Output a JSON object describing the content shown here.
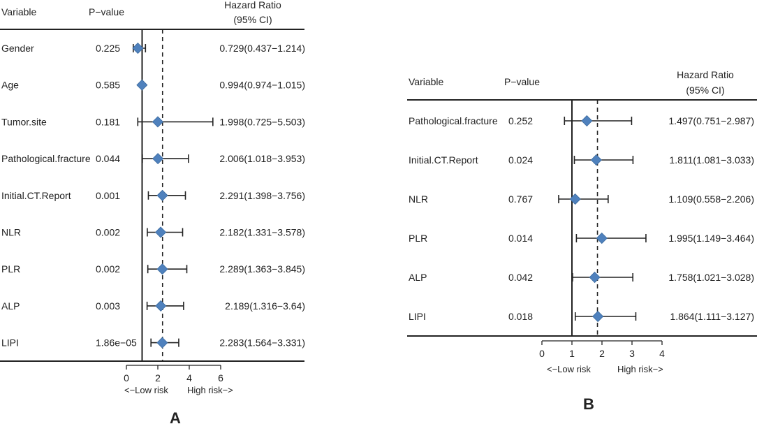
{
  "chart_data": [
    {
      "type": "forest",
      "panel_label": "A",
      "columns": {
        "variable": "Variable",
        "pvalue": "P−value",
        "hr_line1": "Hazard Ratio",
        "hr_line2": "(95% CI)"
      },
      "xaxis": {
        "ticks": [
          0,
          2,
          4,
          6
        ],
        "tick_labels": [
          "0",
          "2",
          "4",
          "6"
        ],
        "reference_line": 1,
        "left_label": "<−Low risk",
        "right_label": "High risk−>"
      },
      "xlim": [
        0,
        6
      ],
      "dashed_line_value": 2.3,
      "rows": [
        {
          "variable": "Gender",
          "p_value": "0.225",
          "hr": 0.729,
          "lower": 0.437,
          "upper": 1.214,
          "hr_text": "0.729(0.437−1.214)"
        },
        {
          "variable": "Age",
          "p_value": "0.585",
          "hr": 0.994,
          "lower": 0.974,
          "upper": 1.015,
          "hr_text": "0.994(0.974−1.015)"
        },
        {
          "variable": "Tumor.site",
          "p_value": "0.181",
          "hr": 1.998,
          "lower": 0.725,
          "upper": 5.503,
          "hr_text": "1.998(0.725−5.503)"
        },
        {
          "variable": "Pathological.fracture",
          "p_value": "0.044",
          "hr": 2.006,
          "lower": 1.018,
          "upper": 3.953,
          "hr_text": "2.006(1.018−3.953)"
        },
        {
          "variable": "Initial.CT.Report",
          "p_value": "0.001",
          "hr": 2.291,
          "lower": 1.398,
          "upper": 3.756,
          "hr_text": "2.291(1.398−3.756)"
        },
        {
          "variable": "NLR",
          "p_value": "0.002",
          "hr": 2.182,
          "lower": 1.331,
          "upper": 3.578,
          "hr_text": "2.182(1.331−3.578)"
        },
        {
          "variable": "PLR",
          "p_value": "0.002",
          "hr": 2.289,
          "lower": 1.363,
          "upper": 3.845,
          "hr_text": "2.289(1.363−3.845)"
        },
        {
          "variable": "ALP",
          "p_value": "0.003",
          "hr": 2.189,
          "lower": 1.316,
          "upper": 3.64,
          "hr_text": "2.189(1.316−3.64)"
        },
        {
          "variable": "LIPI",
          "p_value": "1.86e−05",
          "hr": 2.283,
          "lower": 1.564,
          "upper": 3.331,
          "hr_text": "2.283(1.564−3.331)"
        }
      ]
    },
    {
      "type": "forest",
      "panel_label": "B",
      "columns": {
        "variable": "Variable",
        "pvalue": "P−value",
        "hr_line1": "Hazard Ratio",
        "hr_line2": "(95% CI)"
      },
      "xaxis": {
        "ticks": [
          0,
          1,
          2,
          3,
          4
        ],
        "tick_labels": [
          "0",
          "1",
          "2",
          "3",
          "4"
        ],
        "reference_line": 1,
        "left_label": "<−Low risk",
        "right_label": "High risk−>"
      },
      "xlim": [
        0,
        4
      ],
      "dashed_line_value": 1.85,
      "rows": [
        {
          "variable": "Pathological.fracture",
          "p_value": "0.252",
          "hr": 1.497,
          "lower": 0.751,
          "upper": 2.987,
          "hr_text": "1.497(0.751−2.987)"
        },
        {
          "variable": "Initial.CT.Report",
          "p_value": "0.024",
          "hr": 1.811,
          "lower": 1.081,
          "upper": 3.033,
          "hr_text": "1.811(1.081−3.033)"
        },
        {
          "variable": "NLR",
          "p_value": "0.767",
          "hr": 1.109,
          "lower": 0.558,
          "upper": 2.206,
          "hr_text": "1.109(0.558−2.206)"
        },
        {
          "variable": "PLR",
          "p_value": "0.014",
          "hr": 1.995,
          "lower": 1.149,
          "upper": 3.464,
          "hr_text": "1.995(1.149−3.464)"
        },
        {
          "variable": "ALP",
          "p_value": "0.042",
          "hr": 1.758,
          "lower": 1.021,
          "upper": 3.028,
          "hr_text": "1.758(1.021−3.028)"
        },
        {
          "variable": "LIPI",
          "p_value": "0.018",
          "hr": 1.864,
          "lower": 1.111,
          "upper": 3.127,
          "hr_text": "1.864(1.111−3.127)"
        }
      ]
    }
  ],
  "style": {
    "marker_color": "#4f81bd",
    "line_color": "#222222"
  }
}
